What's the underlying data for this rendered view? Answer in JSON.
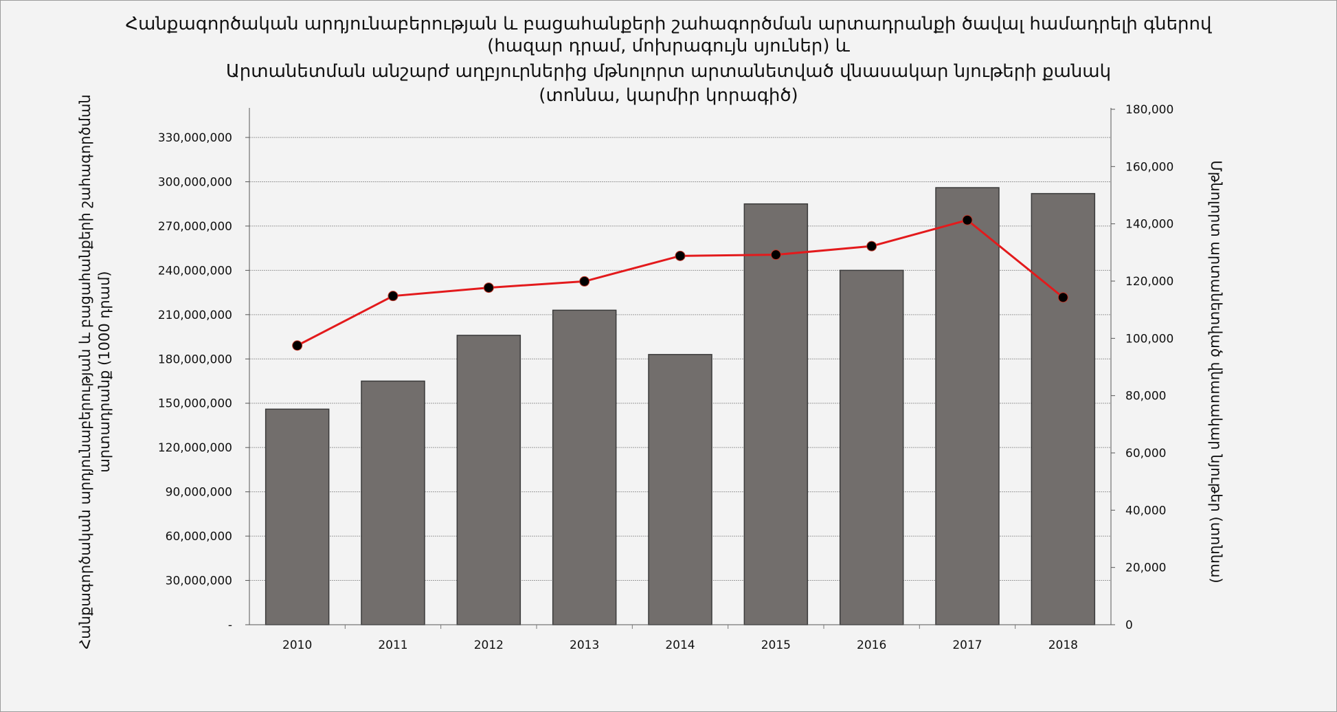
{
  "chart_data": {
    "type": "bar",
    "title_lines": [
      "Հանքագործական արդյունաբերության և բացահանքերի շահագործման արտադրանքի ծավալ համադրելի գներով",
      "(հազար դրամ, մոխրագույն սյուներ) և",
      "Արտանետման անշարժ աղբյուրներից մթնոլորտ արտանետված վնասակար նյութերի քանակ",
      "(տոննա, կարմիր կորագիծ)"
    ],
    "categories": [
      "2010",
      "2011",
      "2012",
      "2013",
      "2014",
      "2015",
      "2016",
      "2017",
      "2018"
    ],
    "series": [
      {
        "axis": "left",
        "chart_type": "bar",
        "color": "#726e6c",
        "values": [
          146000000,
          165000000,
          196000000,
          213000000,
          183000000,
          285000000,
          240000000,
          296000000,
          292000000
        ]
      },
      {
        "axis": "right",
        "chart_type": "line",
        "color": "#e31a1c",
        "marker_color": "#000000",
        "values": [
          97500,
          114800,
          117700,
          119900,
          128800,
          129200,
          132200,
          141300,
          114300
        ]
      }
    ],
    "left_axis": {
      "label_lines": [
        "Հանքագործական արդյունաբերության և բացահանքերի շահագործման",
        "արտադրանք (1000 դրամ)"
      ],
      "ylim": [
        0,
        350000000
      ],
      "ticks": [
        0,
        30000000,
        60000000,
        90000000,
        120000000,
        150000000,
        180000000,
        210000000,
        240000000,
        270000000,
        300000000,
        330000000
      ],
      "tick_labels": [
        "-",
        "30,000,000",
        "60,000,000",
        "90,000,000",
        "120,000,000",
        "150,000,000",
        "180,000,000",
        "210,000,000",
        "240,000,000",
        "270,000,000",
        "300,000,000",
        "330,000,000"
      ]
    },
    "right_axis": {
      "label_lines": [
        "Մթնոլորտ արտանետված վնասակար նյութեր (տոննա)"
      ],
      "ylim": [
        0,
        180000
      ],
      "ticks": [
        0,
        20000,
        40000,
        60000,
        80000,
        100000,
        120000,
        140000,
        160000,
        180000
      ],
      "tick_labels": [
        "0",
        "20,000",
        "40,000",
        "60,000",
        "80,000",
        "100,000",
        "120,000",
        "140,000",
        "160,000",
        "180,000"
      ]
    },
    "grid": true,
    "gridline_color": "#9a9a9a",
    "legend": "none"
  }
}
